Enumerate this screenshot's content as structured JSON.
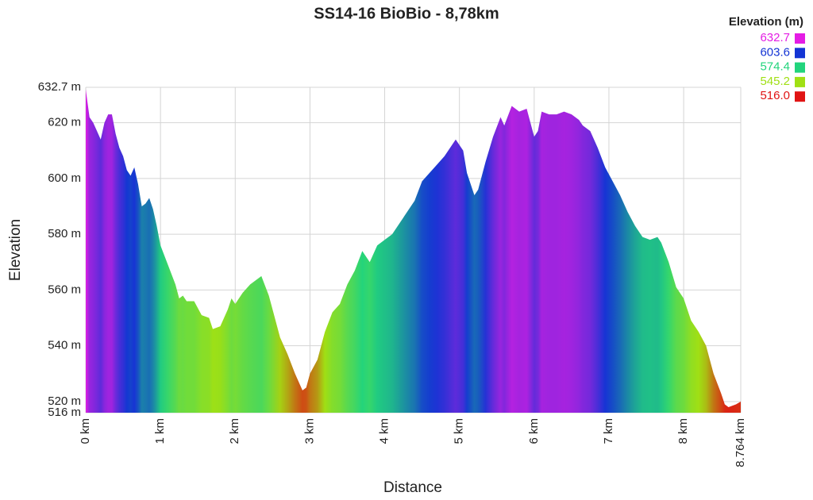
{
  "chart_data": {
    "type": "area",
    "title": "SS14-16 BioBio - 8,78km",
    "x_label": "Distance",
    "y_label": "Elevation",
    "x": [
      0,
      0.05,
      0.1,
      0.15,
      0.2,
      0.25,
      0.3,
      0.35,
      0.4,
      0.45,
      0.5,
      0.55,
      0.6,
      0.65,
      0.7,
      0.75,
      0.8,
      0.85,
      0.9,
      0.95,
      1.0,
      1.1,
      1.2,
      1.25,
      1.3,
      1.35,
      1.45,
      1.55,
      1.65,
      1.7,
      1.8,
      1.9,
      1.95,
      2.0,
      2.1,
      2.2,
      2.3,
      2.35,
      2.45,
      2.6,
      2.7,
      2.8,
      2.9,
      2.95,
      3.0,
      3.1,
      3.2,
      3.3,
      3.4,
      3.5,
      3.6,
      3.7,
      3.8,
      3.9,
      4.0,
      4.1,
      4.2,
      4.3,
      4.4,
      4.5,
      4.6,
      4.7,
      4.8,
      4.9,
      4.95,
      5.05,
      5.1,
      5.2,
      5.25,
      5.35,
      5.45,
      5.55,
      5.6,
      5.7,
      5.8,
      5.9,
      6.0,
      6.05,
      6.1,
      6.2,
      6.3,
      6.4,
      6.5,
      6.6,
      6.65,
      6.75,
      6.85,
      6.95,
      7.05,
      7.15,
      7.25,
      7.35,
      7.45,
      7.55,
      7.65,
      7.7,
      7.8,
      7.9,
      8.0,
      8.1,
      8.2,
      8.3,
      8.4,
      8.5,
      8.55,
      8.6,
      8.7,
      8.764
    ],
    "values": [
      632,
      622,
      620,
      617,
      614,
      620,
      623,
      623,
      616,
      611,
      608,
      603,
      601,
      604,
      598,
      590,
      591,
      593,
      589,
      583,
      576,
      569,
      562,
      557,
      558,
      556,
      556,
      551,
      550,
      546,
      547,
      553,
      557,
      555,
      559,
      562,
      564,
      565,
      558,
      543,
      537,
      530,
      524,
      525,
      530,
      535,
      545,
      552,
      555,
      562,
      567,
      574,
      570,
      576,
      578,
      580,
      584,
      588,
      592,
      599,
      602,
      605,
      608,
      612,
      614,
      610,
      602,
      594,
      596,
      606,
      615,
      622,
      619,
      626,
      624,
      625,
      615,
      617,
      624,
      623,
      623,
      624,
      623,
      621,
      619,
      617,
      611,
      604,
      599,
      594,
      588,
      583,
      579,
      578,
      579,
      577,
      570,
      561,
      557,
      549,
      545,
      540,
      530,
      523,
      519,
      518,
      519,
      520
    ],
    "xlim": [
      0,
      8.764
    ],
    "ylim": [
      516,
      632.7
    ],
    "xticks": [
      {
        "value": 0,
        "label": "0 km"
      },
      {
        "value": 1,
        "label": "1 km"
      },
      {
        "value": 2,
        "label": "2 km"
      },
      {
        "value": 3,
        "label": "3 km"
      },
      {
        "value": 4,
        "label": "4 km"
      },
      {
        "value": 5,
        "label": "5 km"
      },
      {
        "value": 6,
        "label": "6 km"
      },
      {
        "value": 7,
        "label": "7 km"
      },
      {
        "value": 8,
        "label": "8 km"
      },
      {
        "value": 8.764,
        "label": "8.764 km"
      }
    ],
    "yticks": [
      {
        "value": 516,
        "label": "516 m"
      },
      {
        "value": 520,
        "label": "520 m"
      },
      {
        "value": 540,
        "label": "540 m"
      },
      {
        "value": 560,
        "label": "560 m"
      },
      {
        "value": 580,
        "label": "580 m"
      },
      {
        "value": 600,
        "label": "600 m"
      },
      {
        "value": 620,
        "label": "620 m"
      },
      {
        "value": 632.7,
        "label": "632.7 m"
      }
    ],
    "grid": true,
    "legend": {
      "title": "Elevation (m)",
      "values": [
        632.7,
        603.6,
        574.4,
        545.2,
        {
          "value": 516,
          "label": "516.0"
        }
      ],
      "colors": [
        "#e41ce4",
        "#1434d4",
        "#22d47c",
        "#a0e014",
        "#e01414"
      ]
    }
  }
}
